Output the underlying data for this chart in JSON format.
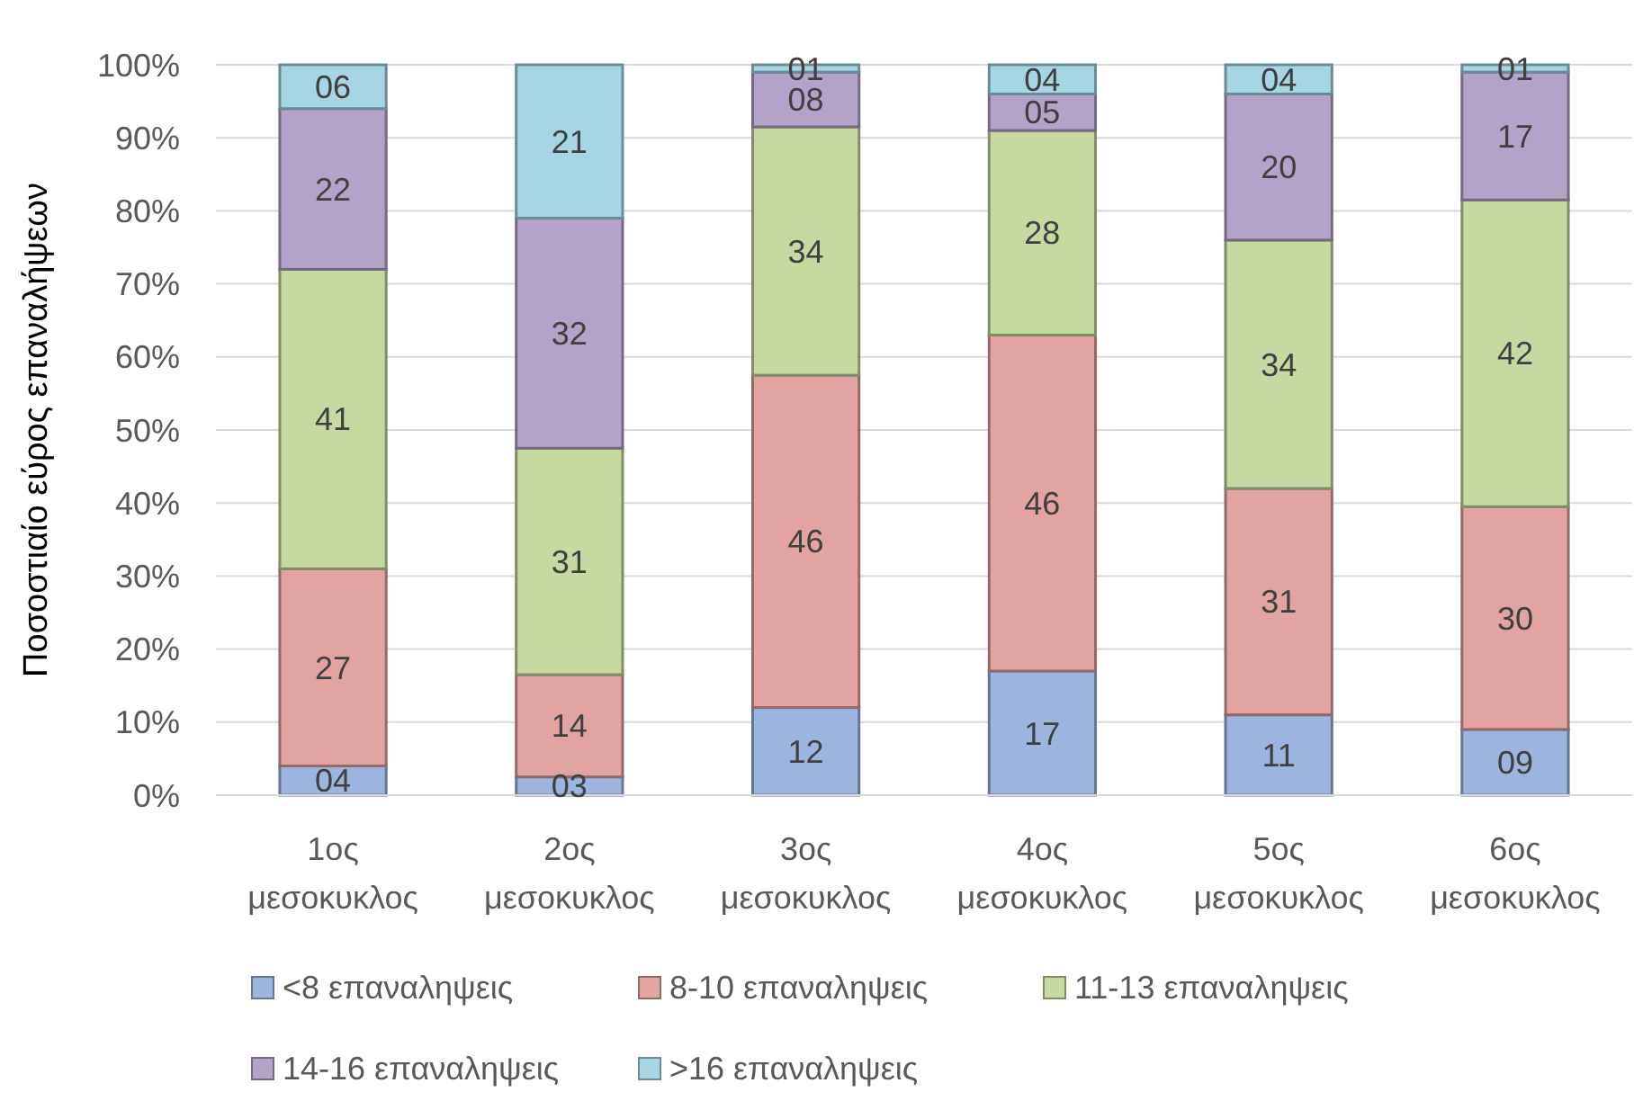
{
  "chart_data": {
    "type": "bar",
    "stacked": true,
    "ylabel": "Ποσοστιαίο εύρος επαναλήψεων",
    "categories": [
      "1ος μεσοκυκλος",
      "2ος μεσοκυκλος",
      "3ος μεσοκυκλος",
      "4ος μεσοκυκλος",
      "5ος μεσοκυκλος",
      "6ος μεσοκυκλος"
    ],
    "series": [
      {
        "name": "<8 επαναληψεις",
        "color": "#9db5de",
        "values": [
          4,
          2.5,
          12,
          17,
          11,
          9
        ],
        "value_labels": [
          "04",
          "03",
          "12",
          "17",
          "11",
          "09"
        ]
      },
      {
        "name": "8-10 επαναληψεις",
        "color": "#e2a3a3",
        "values": [
          27,
          14,
          45.5,
          46,
          31,
          30.5
        ],
        "value_labels": [
          "27",
          "14",
          "46",
          "46",
          "31",
          "30"
        ]
      },
      {
        "name": "11-13 επαναληψεις",
        "color": "#c6d9a0",
        "values": [
          41,
          31,
          34,
          28,
          34,
          42
        ],
        "value_labels": [
          "41",
          "31",
          "34",
          "28",
          "34",
          "42"
        ]
      },
      {
        "name": "14-16 επαναληψεις",
        "color": "#b4a3c8",
        "values": [
          22,
          31.5,
          7.5,
          5,
          20,
          17.5
        ],
        "value_labels": [
          "22",
          "32",
          "08",
          "05",
          "20",
          "17"
        ]
      },
      {
        "name": ">16 επαναληψεις",
        "color": "#a6d5e3",
        "values": [
          6,
          21,
          1,
          4,
          4,
          1
        ],
        "value_labels": [
          "06",
          "21",
          "01",
          "04",
          "04",
          "01"
        ]
      }
    ],
    "ylim": [
      0,
      100
    ],
    "yticks": [
      {
        "value": 0,
        "label": "0%"
      },
      {
        "value": 10,
        "label": "10%"
      },
      {
        "value": 20,
        "label": "20%"
      },
      {
        "value": 30,
        "label": "30%"
      },
      {
        "value": 40,
        "label": "40%"
      },
      {
        "value": 50,
        "label": "50%"
      },
      {
        "value": 60,
        "label": "60%"
      },
      {
        "value": 70,
        "label": "70%"
      },
      {
        "value": 80,
        "label": "80%"
      },
      {
        "value": 90,
        "label": "90%"
      },
      {
        "value": 100,
        "label": "100%"
      }
    ],
    "grid": "y",
    "data_labels": true,
    "legend": "bottom"
  }
}
